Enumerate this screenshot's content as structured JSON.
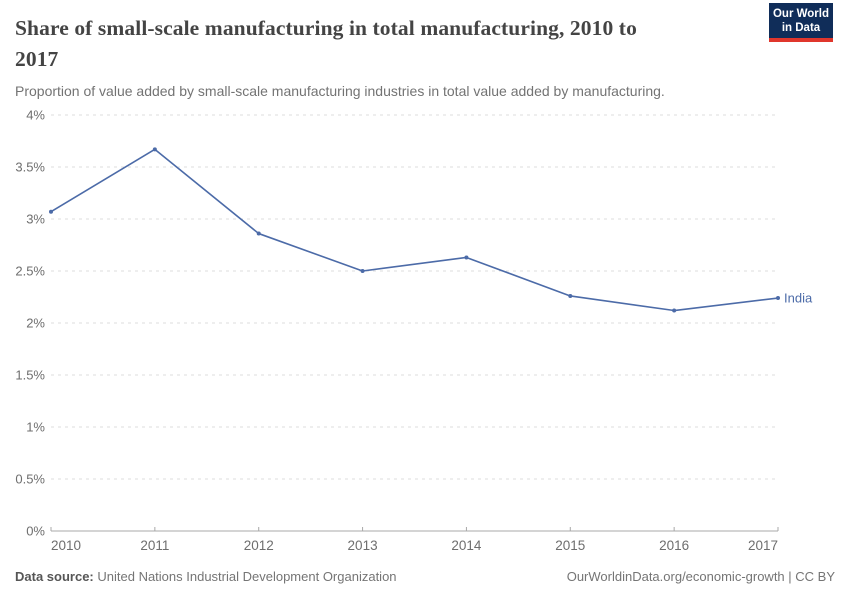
{
  "header": {
    "title_line1": "Share of small-scale manufacturing in total manufacturing, 2010 to",
    "title_line2": "2017",
    "subtitle": "Proportion of value added by small-scale manufacturing industries in total value added by manufacturing.",
    "logo": {
      "line1": "Our World",
      "line2": "in Data",
      "bg_color": "#102d59",
      "accent_color": "#e0362c"
    }
  },
  "chart_data": {
    "type": "line",
    "title": "Share of small-scale manufacturing in total manufacturing, 2010 to 2017",
    "xlabel": "",
    "ylabel": "",
    "x": [
      2010,
      2011,
      2012,
      2013,
      2014,
      2015,
      2016,
      2017
    ],
    "series": [
      {
        "name": "India",
        "color": "#4c6ba8",
        "values": [
          3.07,
          3.67,
          2.86,
          2.5,
          2.63,
          2.26,
          2.12,
          2.24
        ]
      }
    ],
    "unit": "%",
    "ylim": [
      0,
      4
    ],
    "y_ticks": [
      {
        "value": 0,
        "label": "0%"
      },
      {
        "value": 0.5,
        "label": "0.5%"
      },
      {
        "value": 1,
        "label": "1%"
      },
      {
        "value": 1.5,
        "label": "1.5%"
      },
      {
        "value": 2,
        "label": "2%"
      },
      {
        "value": 2.5,
        "label": "2.5%"
      },
      {
        "value": 3,
        "label": "3%"
      },
      {
        "value": 3.5,
        "label": "3.5%"
      },
      {
        "value": 4,
        "label": "4%"
      }
    ],
    "grid": "horizontal-dashed",
    "legend": "series-end-label",
    "gridline_color": "#dcdcdc",
    "axis_color": "#a8a8a8",
    "tick_label_color": "#6e6e6e"
  },
  "footer": {
    "source_label": "Data source:",
    "source_value": "United Nations Industrial Development Organization",
    "attribution": "OurWorldinData.org/economic-growth | CC BY"
  }
}
